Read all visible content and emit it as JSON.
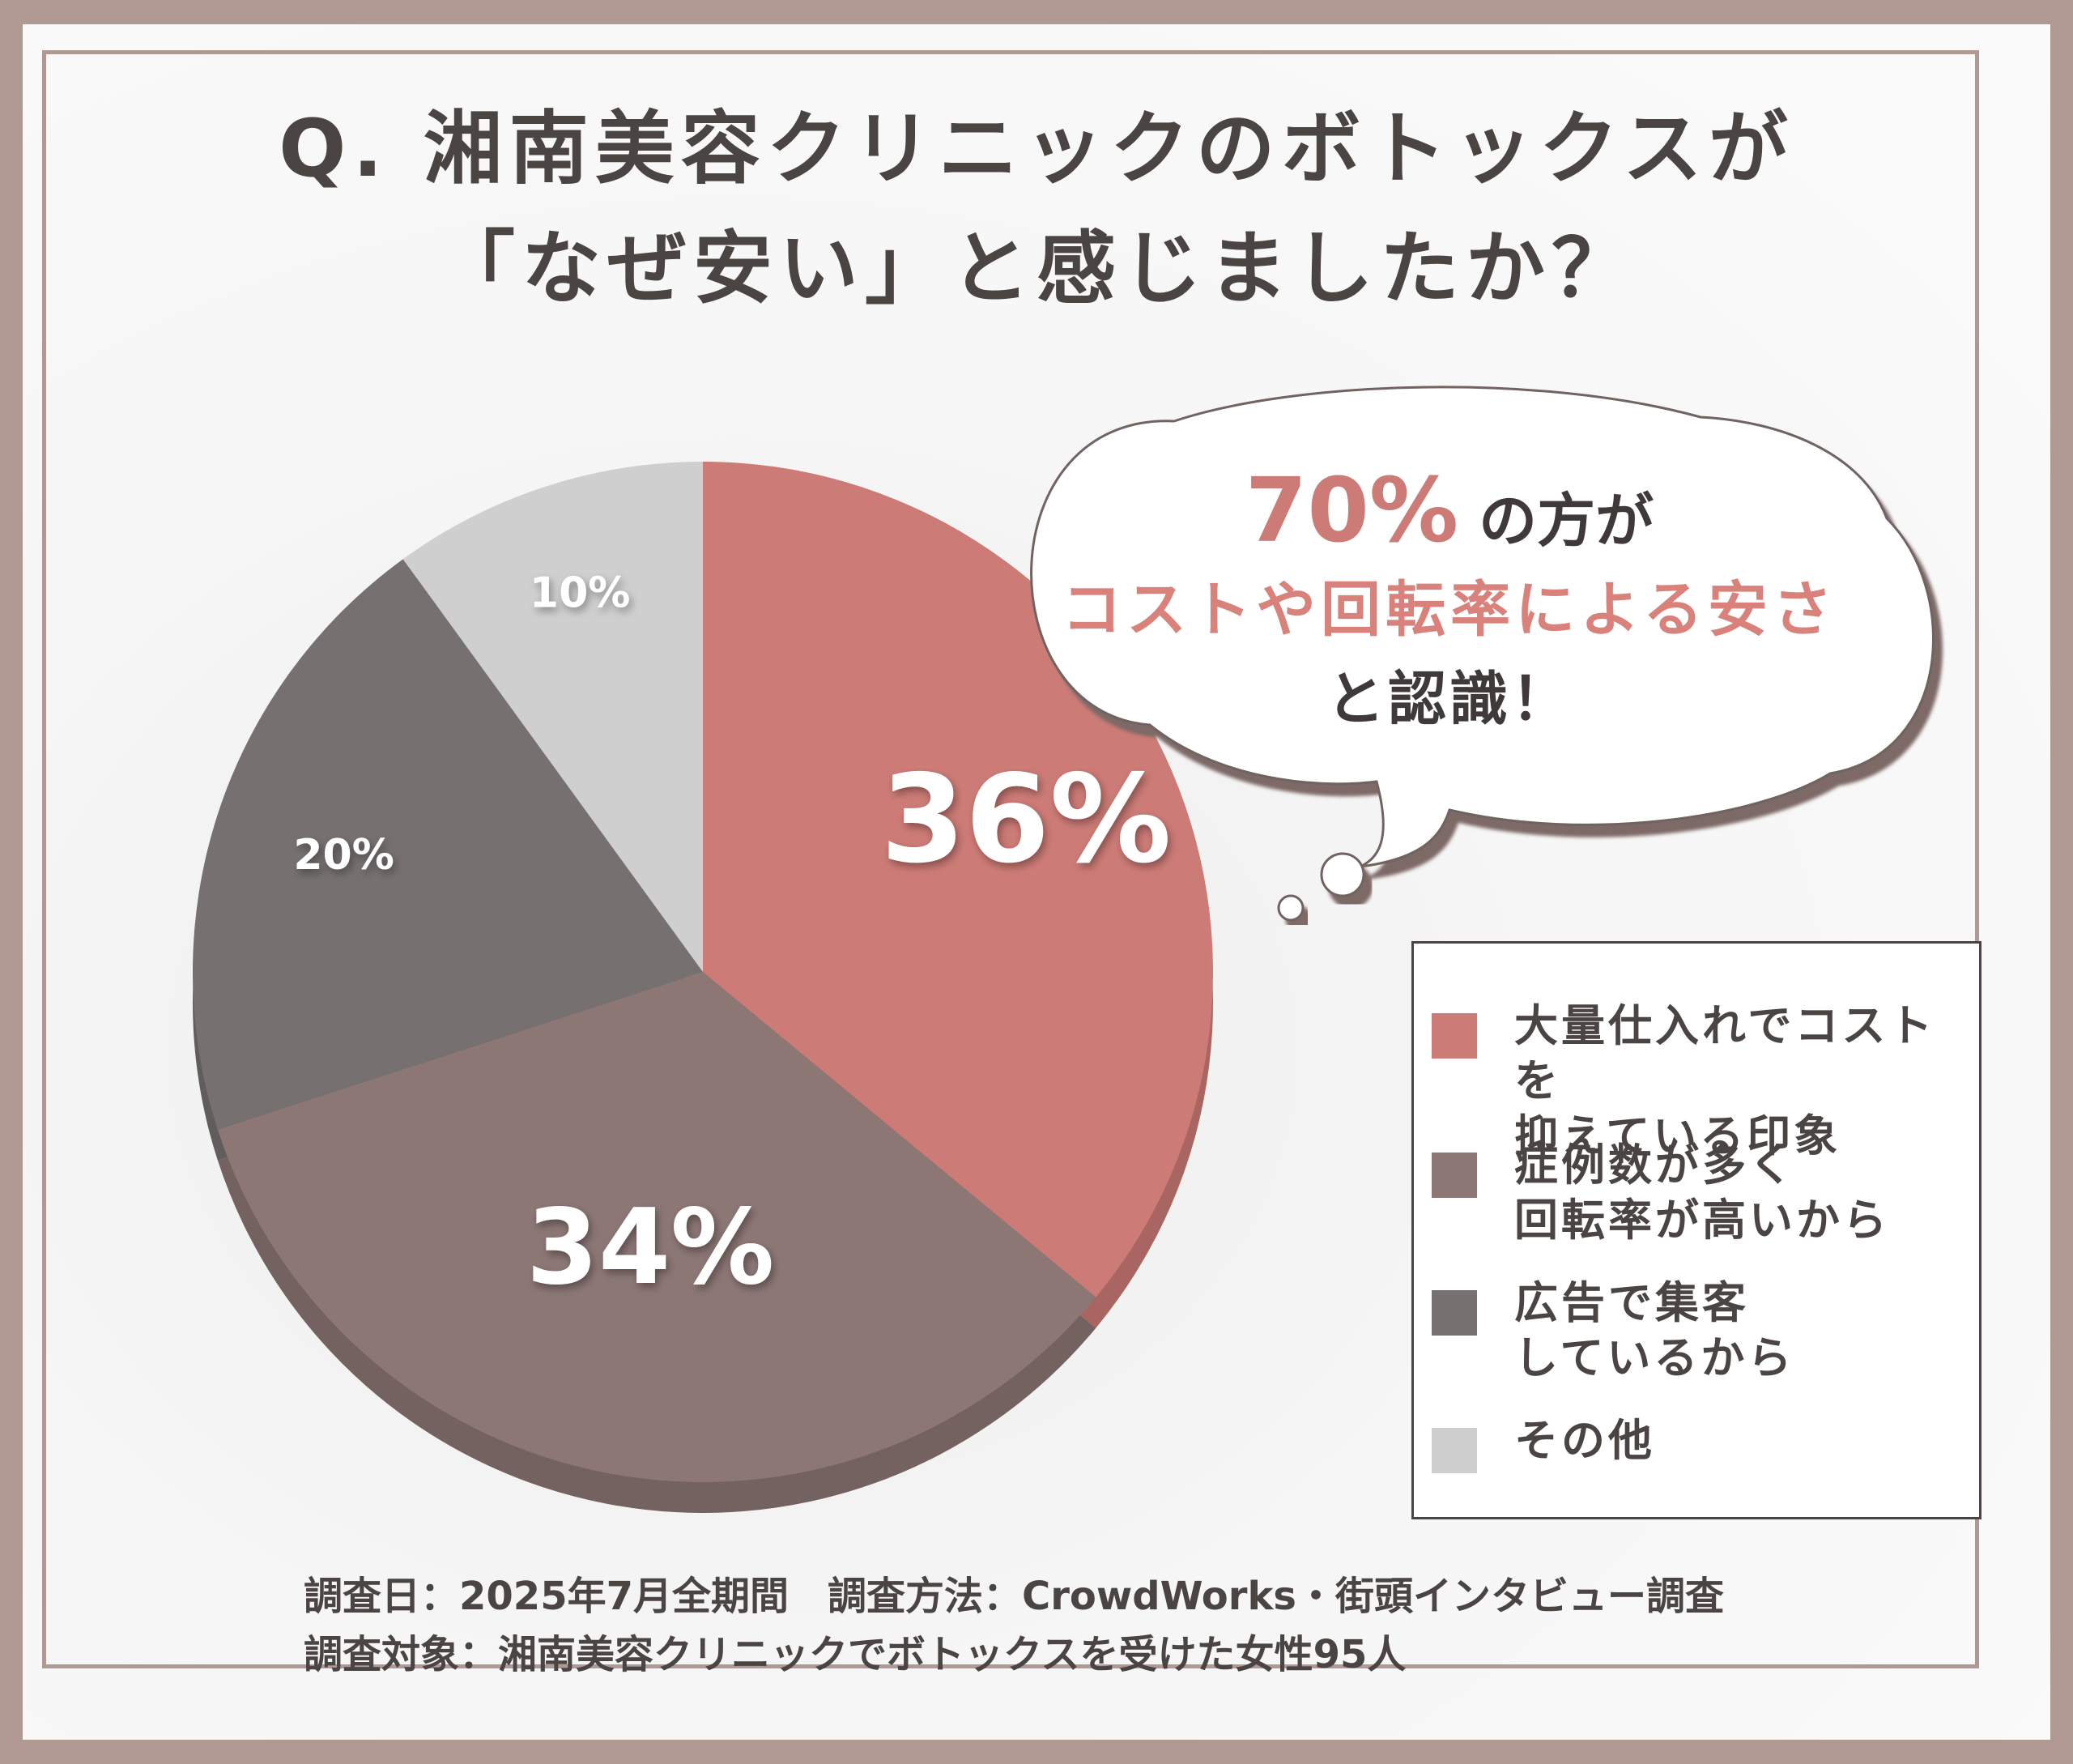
{
  "title": {
    "line1": "Q. 湘南美容クリニックのボトックスが",
    "line2": "「なぜ安い」と感じましたか？"
  },
  "callout": {
    "percent": "70%",
    "line1_suffix": "の方が",
    "line2": "コストや回転率による安さ",
    "line3": "と認識！"
  },
  "colors": {
    "frame": "#b09893",
    "slice_1": "#cd7b76",
    "slice_2": "#8c7775",
    "slice_3": "#767170",
    "slice_4": "#cfcfcf",
    "text": "#4a4443"
  },
  "chart_data": {
    "type": "pie",
    "start_angle": "12 o'clock, clockwise",
    "slices": [
      {
        "label": "大量仕入れでコストを\n抑えている印象",
        "value": 36,
        "display": "36%",
        "color": "#cd7b76"
      },
      {
        "label": "症例数が多く\n回転率が高いから",
        "value": 34,
        "display": "34%",
        "color": "#8c7775"
      },
      {
        "label": "広告で集客\nしているから",
        "value": 20,
        "display": "20%",
        "color": "#767170"
      },
      {
        "label": "その他",
        "value": 10,
        "display": "10%",
        "color": "#cfcfcf"
      }
    ],
    "legend_position": "right"
  },
  "footer": {
    "line1": "調査日：2025年7月全期間　調査方法：CrowdWorks・街頭インタビュー調査",
    "line2": "調査対象：湘南美容クリニックでボトックスを受けた女性95人"
  }
}
